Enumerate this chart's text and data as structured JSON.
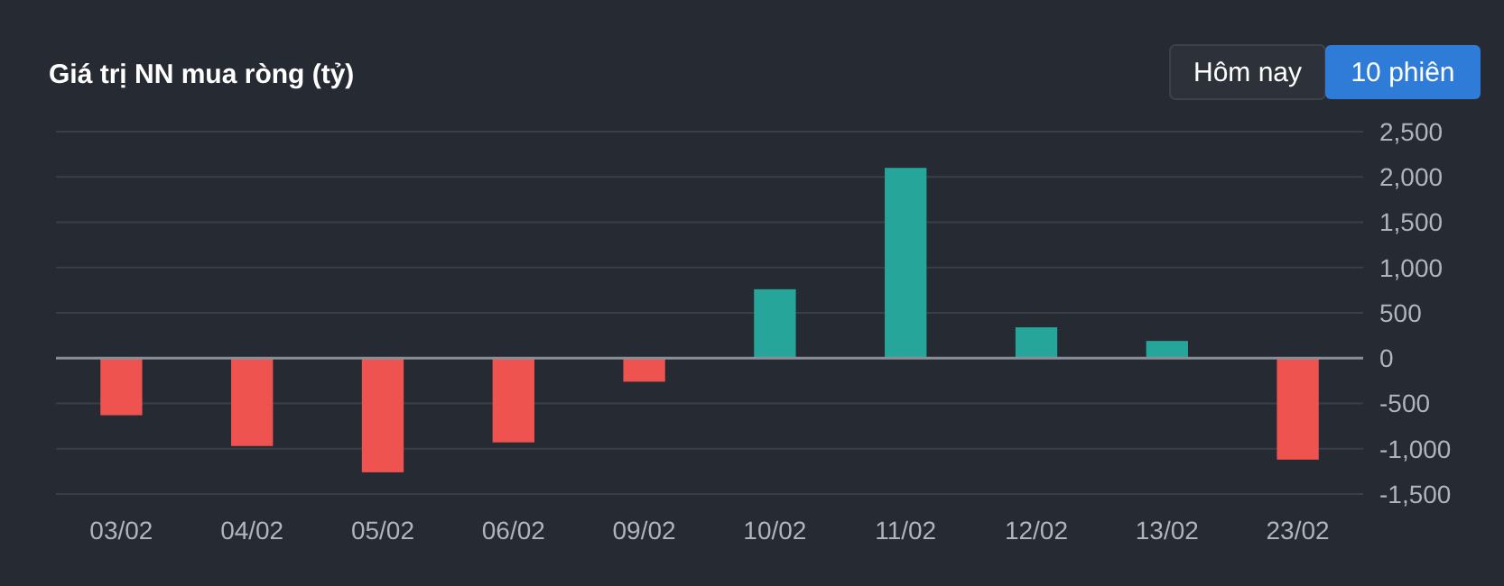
{
  "chart_data": {
    "type": "bar",
    "title": "Giá trị NN mua ròng (tỷ)",
    "categories": [
      "03/02",
      "04/02",
      "05/02",
      "06/02",
      "09/02",
      "10/02",
      "11/02",
      "12/02",
      "13/02",
      "23/02"
    ],
    "values": [
      -630,
      -970,
      -1260,
      -930,
      -260,
      760,
      2100,
      340,
      190,
      -1120
    ],
    "colors": [
      "#ef5350",
      "#ef5350",
      "#ef5350",
      "#ef5350",
      "#ef5350",
      "#26a69a",
      "#26a69a",
      "#26a69a",
      "#26a69a",
      "#ef5350"
    ],
    "ylim": [
      -1500,
      2500
    ],
    "yticks": [
      {
        "value": -1500,
        "label": "-1,500"
      },
      {
        "value": -1000,
        "label": "-1,000"
      },
      {
        "value": -500,
        "label": "-500"
      },
      0,
      500,
      {
        "value": 1000,
        "label": "1,000"
      },
      {
        "value": 1500,
        "label": "1,500"
      },
      {
        "value": 2000,
        "label": "2,000"
      },
      {
        "value": 2500,
        "label": "2,500"
      }
    ],
    "grid": "y",
    "annotations": [
      "Hôm nay",
      "10 phiên"
    ]
  }
}
